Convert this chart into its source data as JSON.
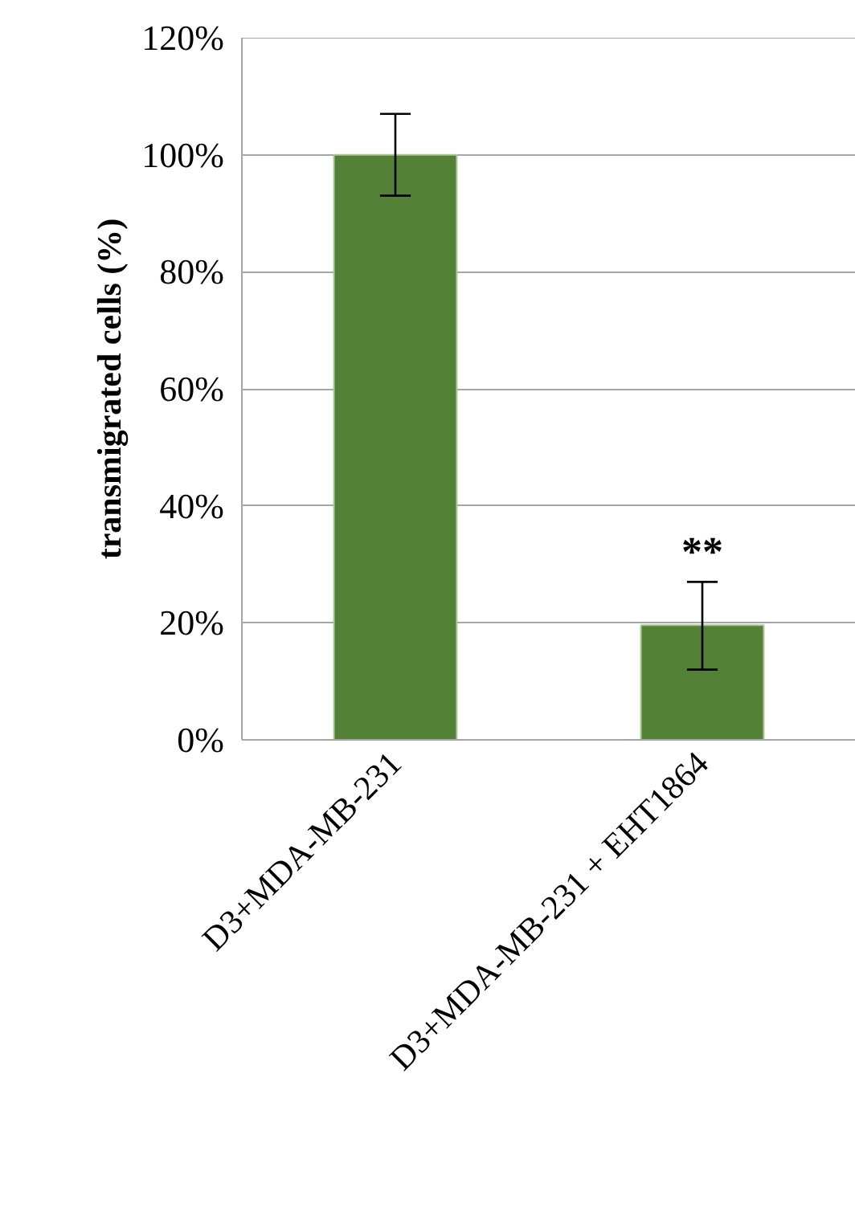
{
  "chart_data": {
    "type": "bar",
    "ylabel": "transmigrated cells (%)",
    "categories": [
      "D3+MDA-MB-231",
      "D3+MDA-MB-231 + EHT1864"
    ],
    "values": [
      100,
      19.6
    ],
    "color": "#538135",
    "errors": [
      [
        93,
        107
      ],
      [
        12,
        27
      ]
    ],
    "ylim": [
      0,
      120
    ],
    "yticks": [
      {
        "value": 0,
        "label": "0%"
      },
      {
        "value": 20,
        "label": "20%"
      },
      {
        "value": 40,
        "label": "40%"
      },
      {
        "value": 60,
        "label": "60%"
      },
      {
        "value": 80,
        "label": "80%"
      },
      {
        "value": 100,
        "label": "100%"
      },
      {
        "value": 120,
        "label": "120%"
      }
    ],
    "grid": "y",
    "annotations": [
      "**"
    ]
  }
}
